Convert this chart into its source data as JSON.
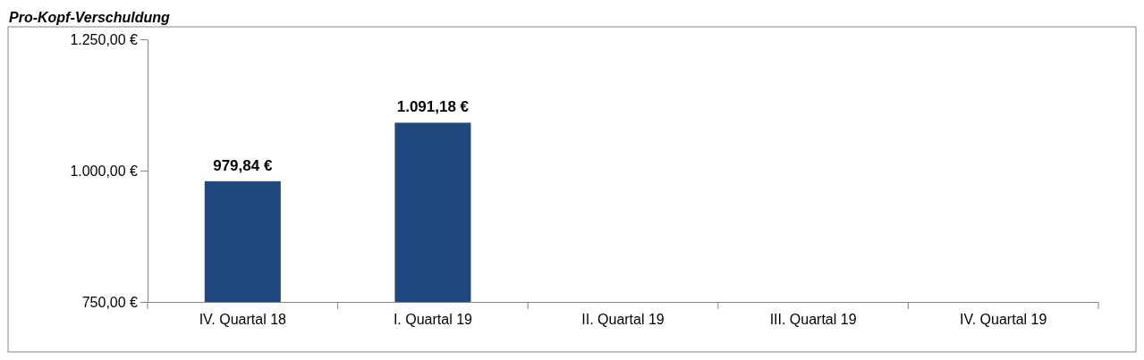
{
  "chart_data": {
    "type": "bar",
    "title": "Pro-Kopf-Verschuldung",
    "categories": [
      "IV. Quartal 18",
      "I. Quartal 19",
      "II. Quartal 19",
      "III. Quartal 19",
      "IV. Quartal 19"
    ],
    "values": [
      979.84,
      1091.18,
      null,
      null,
      null
    ],
    "value_labels": [
      "979,84 €",
      "1.091,18 €",
      null,
      null,
      null
    ],
    "color": "#1f497d",
    "ylim": [
      750,
      1250
    ],
    "yticks": [
      {
        "value": 750,
        "label": "750,00 €"
      },
      {
        "value": 1000,
        "label": "1.000,00 €"
      },
      {
        "value": 1250,
        "label": "1.250,00 €"
      }
    ],
    "grid": false
  }
}
